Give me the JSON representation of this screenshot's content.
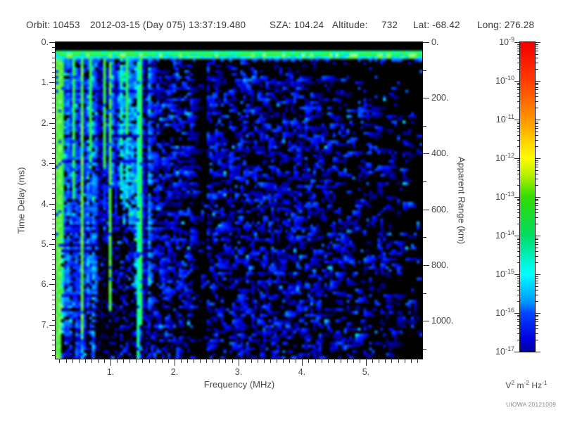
{
  "header": {
    "orbit": "Orbit: 10453",
    "datetime": "2012-03-15 (Day 075) 13:37:19.480",
    "sza": "SZA: 104.24",
    "altitude_label": "Altitude:",
    "altitude_value": "732",
    "lat": "Lat: -68.42",
    "long": "Long: 276.28"
  },
  "footer": {
    "credit": "UIOWA 20121009"
  },
  "chart_data": {
    "type": "heatmap",
    "subtype": "radar-sounder-ionogram-spectrogram",
    "x_axis": {
      "label": "Frequency (MHz)",
      "min": 0.14,
      "max": 5.88,
      "major_ticks": [
        1,
        2,
        3,
        4,
        5
      ],
      "major_tick_labels": [
        "1.",
        "2.",
        "3.",
        "4.",
        "5."
      ],
      "minor_tick_step": 0.1
    },
    "y_axis_left": {
      "label": "Time Delay (ms)",
      "min": 0,
      "max": 7.84,
      "major_ticks": [
        0,
        1,
        2,
        3,
        4,
        5,
        6,
        7
      ],
      "major_tick_labels": [
        "0.",
        "1.",
        "2.",
        "3.",
        "4.",
        "5.",
        "6.",
        "7."
      ],
      "minor_tick_step": 0.125
    },
    "y_axis_right": {
      "label": "Apparent Range (km)",
      "min": 0,
      "max": 1136,
      "major_ticks": [
        0,
        200,
        400,
        600,
        800,
        1000
      ],
      "major_tick_labels": [
        "0.",
        "200.",
        "400.",
        "600.",
        "800.",
        "1000."
      ],
      "minor_tick_step": 100
    },
    "colorbar": {
      "scale": "log",
      "top_value": "1e-9",
      "bottom_value": "1e-17",
      "base": "10",
      "exponents": [
        -9,
        -10,
        -11,
        -12,
        -13,
        -14,
        -15,
        -16,
        -17
      ],
      "units": {
        "v": "V",
        "v_exp": "2",
        "m": "m",
        "m_exp": "-2",
        "hz": "Hz",
        "hz_exp": "-1"
      },
      "gradient": [
        "#f00000 0%",
        "#ff3c00 12.5%",
        "#ff9600 25%",
        "#ffe100 34%",
        "#fffa00 37.5%",
        "#b4f000 43%",
        "#32dc00 50%",
        "#00dc64 62.5%",
        "#00f0c8 70%",
        "#00ffff 75%",
        "#0096ff 84%",
        "#0046ff 87.5%",
        "#0000dc 96%",
        "#0000a0 100%"
      ]
    },
    "colormap": [
      [
        0,
        "#000000"
      ],
      [
        0.1,
        "#00006e"
      ],
      [
        0.22,
        "#0000cd"
      ],
      [
        0.32,
        "#001eff"
      ],
      [
        0.45,
        "#005aff"
      ],
      [
        0.55,
        "#00a0ff"
      ],
      [
        0.62,
        "#00dcff"
      ],
      [
        0.68,
        "#00ffe6"
      ],
      [
        0.74,
        "#00ffa0"
      ],
      [
        0.8,
        "#28f550"
      ],
      [
        0.88,
        "#46e63c"
      ],
      [
        0.95,
        "#82f55a"
      ],
      [
        1,
        "#b4ffb4"
      ]
    ],
    "features": {
      "seed": 20121009,
      "surface_echo_band": {
        "time_delay_ms": 0.27,
        "thickness_ms": 0.22,
        "intensity_range": [
          0.75,
          1.0
        ]
      },
      "ionospheric_stripe_region": {
        "freq_range_mhz": [
          0.14,
          1.62
        ],
        "dark_lower_freq_range_mhz": [
          0.78,
          1.38
        ]
      },
      "bright_vertical_lines": [
        [
          0.16,
          1.0,
          0.88
        ],
        [
          0.2,
          1.0,
          0.92
        ],
        [
          0.27,
          0.62,
          0.85
        ],
        [
          0.44,
          0.5,
          0.8
        ],
        [
          0.57,
          0.95,
          0.9
        ],
        [
          0.7,
          0.4,
          0.8
        ],
        [
          0.89,
          0.4,
          0.85
        ],
        [
          0.98,
          0.85,
          0.88
        ],
        [
          1.24,
          0.3,
          0.82
        ],
        [
          1.43,
          1.0,
          0.72
        ],
        [
          1.47,
          0.9,
          0.8
        ]
      ],
      "quiet_band_mhz": [
        2.31,
        2.49
      ],
      "noise_density_profile": [
        [
          1.45,
          0.3
        ],
        [
          1.8,
          0.33
        ],
        [
          2.28,
          0.33
        ],
        [
          2.32,
          0.04
        ],
        [
          2.48,
          0.04
        ],
        [
          2.52,
          0.3
        ],
        [
          3.2,
          0.3
        ],
        [
          3.3,
          0.33
        ],
        [
          3.9,
          0.3
        ],
        [
          4.4,
          0.22
        ],
        [
          4.9,
          0.15
        ],
        [
          5.4,
          0.1
        ],
        [
          5.88,
          0.07
        ]
      ]
    }
  }
}
